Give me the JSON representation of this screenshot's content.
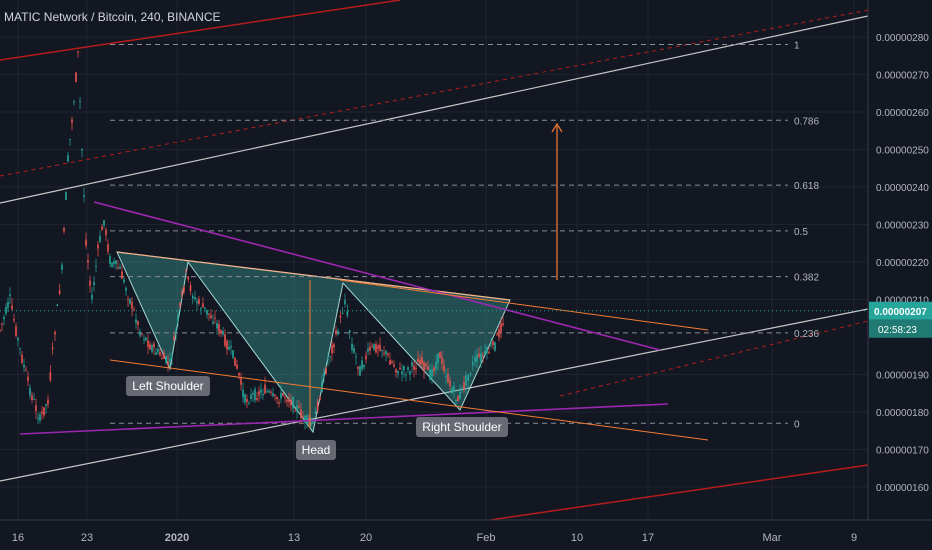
{
  "header": {
    "title": "MATIC Network / Bitcoin, 240, BINANCE"
  },
  "colors": {
    "background": "#131722",
    "up": "#26a69a",
    "down": "#ef5350",
    "pattern_fill": "#3fb5ad",
    "purple": "#9c27b0",
    "orange": "#f57c33",
    "channel_white": "#c8c8c8",
    "channel_red": "#b71c1c",
    "price_badge": "#26a69a"
  },
  "chart_data": {
    "type": "candlestick",
    "symbol": "MATIC Network / Bitcoin",
    "interval": "240",
    "exchange": "BINANCE",
    "y_ticks": [
      1.6e-06,
      1.7e-06,
      1.8e-06,
      1.9e-06,
      2.1e-06,
      2.2e-06,
      2.3e-06,
      2.4e-06,
      2.5e-06,
      2.6e-06,
      2.7e-06,
      2.8e-06
    ],
    "y_tick_labels": [
      "0.00000160",
      "0.00000170",
      "0.00000180",
      "0.00000190",
      "0.00000210",
      "0.00000220",
      "0.00000230",
      "0.00000240",
      "0.00000250",
      "0.00000260",
      "0.00000270",
      "0.00000280"
    ],
    "x_ticks": [
      {
        "label": "16",
        "bold": false
      },
      {
        "label": "23",
        "bold": false
      },
      {
        "label": "2020",
        "bold": true
      },
      {
        "label": "13",
        "bold": false
      },
      {
        "label": "20",
        "bold": false
      },
      {
        "label": "Feb",
        "bold": false
      },
      {
        "label": "10",
        "bold": false
      },
      {
        "label": "17",
        "bold": false
      },
      {
        "label": "Mar",
        "bold": false
      },
      {
        "label": "9",
        "bold": false
      }
    ],
    "current_price": {
      "label": "0.00000207",
      "value": 2.07e-06,
      "countdown": "02:58:23"
    },
    "fib_levels": [
      {
        "label": "1",
        "value": 2.78e-06
      },
      {
        "label": "0.786",
        "value": 2.578e-06
      },
      {
        "label": "0.618",
        "value": 2.405e-06
      },
      {
        "label": "0.5",
        "value": 2.283e-06
      },
      {
        "label": "0.382",
        "value": 2.161e-06
      },
      {
        "label": "0.236",
        "value": 2.011e-06
      },
      {
        "label": "0",
        "value": 1.77e-06
      }
    ],
    "annotations": [
      {
        "label": "Left Shoulder"
      },
      {
        "label": "Head"
      },
      {
        "label": "Right Shoulder"
      }
    ],
    "pattern": "Inverse head and shoulders",
    "grid": true
  }
}
